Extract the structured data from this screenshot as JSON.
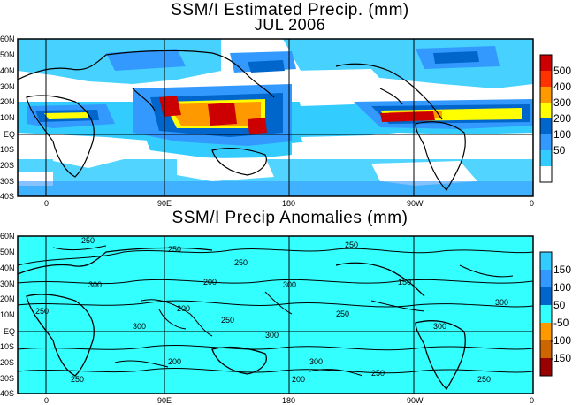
{
  "titles": {
    "top_line1": "SSM/I Estimated Precip. (mm)",
    "top_line2": "JUL 2006",
    "bottom": "SSM/I Precip Anomalies (mm)"
  },
  "lat_labels": [
    "60N",
    "50N",
    "40N",
    "30N",
    "20N",
    "10N",
    "EQ",
    "10S",
    "20S",
    "30S",
    "40S"
  ],
  "lon_labels": [
    "0",
    "90E",
    "180",
    "90W",
    "0"
  ],
  "top_colorbar": {
    "labels": [
      "500",
      "400",
      "300",
      "200",
      "100",
      "50"
    ],
    "colors": [
      "#cc0000",
      "#ff3300",
      "#ff9900",
      "#ffff00",
      "#0066cc",
      "#3399ff",
      "#33ccff",
      "#ffffff"
    ]
  },
  "bottom_colorbar": {
    "labels": [
      "150",
      "100",
      "50",
      "-50",
      "-100",
      "-150"
    ],
    "colors": [
      "#33ccff",
      "#3399ff",
      "#0066cc",
      "#33ffff",
      "#ff9900",
      "#cc6600",
      "#990000"
    ]
  },
  "contour_labels": [
    "250",
    "300",
    "250",
    "200",
    "250",
    "300",
    "150",
    "250",
    "250",
    "300",
    "200",
    "250",
    "300",
    "250",
    "300",
    "200",
    "300",
    "250",
    "250",
    "200",
    "250",
    "300"
  ]
}
